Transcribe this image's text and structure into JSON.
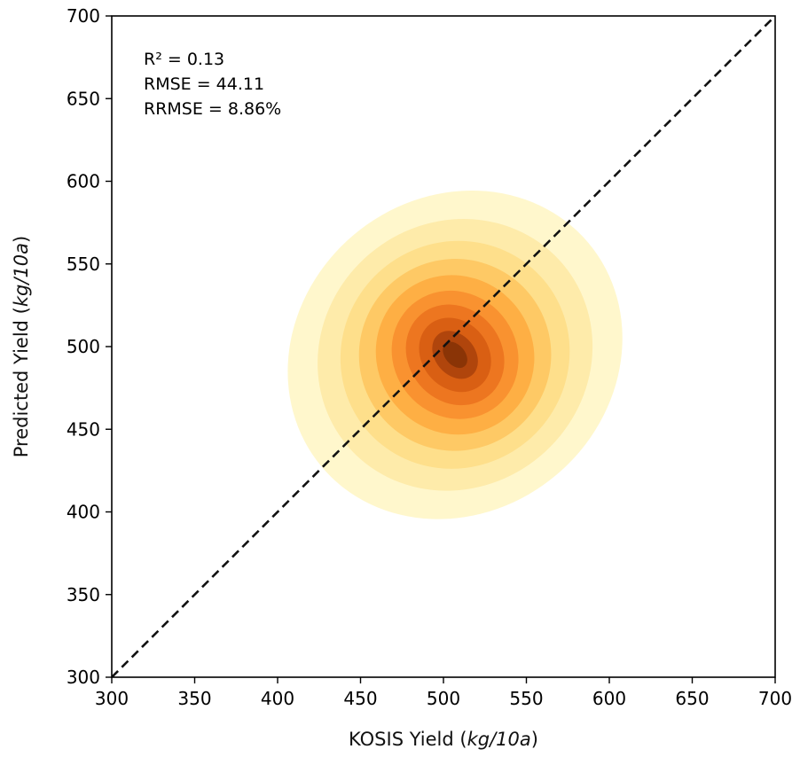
{
  "chart_data": {
    "type": "kde-density-contour",
    "title": "",
    "xlabel_main": "KOSIS Yield (",
    "xlabel_unit": "kg/10a",
    "xlabel_end": ")",
    "ylabel_main": "Predicted Yield (",
    "ylabel_unit": "kg/10a",
    "ylabel_end": ")",
    "xlim": [
      300,
      700
    ],
    "ylim": [
      300,
      700
    ],
    "xticks": [
      300,
      350,
      400,
      450,
      500,
      550,
      600,
      650,
      700
    ],
    "yticks": [
      300,
      350,
      400,
      450,
      500,
      550,
      600,
      650,
      700
    ],
    "xtick_labels": [
      "300",
      "350",
      "400",
      "450",
      "500",
      "550",
      "600",
      "650",
      "700"
    ],
    "ytick_labels": [
      "300",
      "350",
      "400",
      "450",
      "500",
      "550",
      "600",
      "650",
      "700"
    ],
    "reference_line": {
      "label": "1:1 line",
      "from": [
        300,
        300
      ],
      "to": [
        700,
        700
      ],
      "style": "dashed",
      "color": "#111111"
    },
    "density_center": [
      507,
      495
    ],
    "contour_levels": [
      {
        "level": 1,
        "color": "#fff7cc",
        "rx": 105,
        "ry": 95
      },
      {
        "level": 2,
        "color": "#feebaa",
        "rx": 85,
        "ry": 80
      },
      {
        "level": 3,
        "color": "#fedf8b",
        "rx": 70,
        "ry": 68
      },
      {
        "level": 4,
        "color": "#fec965",
        "rx": 58,
        "ry": 58
      },
      {
        "level": 5,
        "color": "#feaf44",
        "rx": 47,
        "ry": 49
      },
      {
        "level": 6,
        "color": "#f99230",
        "rx": 37,
        "ry": 40
      },
      {
        "level": 7,
        "color": "#ed7620",
        "rx": 28,
        "ry": 32
      },
      {
        "level": 8,
        "color": "#d95f13",
        "rx": 20,
        "ry": 24
      },
      {
        "level": 9,
        "color": "#b0450c",
        "rx": 12,
        "ry": 16
      },
      {
        "level": 10,
        "color": "#8a3406",
        "rx": 6,
        "ry": 9
      }
    ],
    "stats": [
      "R² = 0.13",
      "RMSE = 44.11",
      "RRMSE = 8.86%"
    ]
  }
}
